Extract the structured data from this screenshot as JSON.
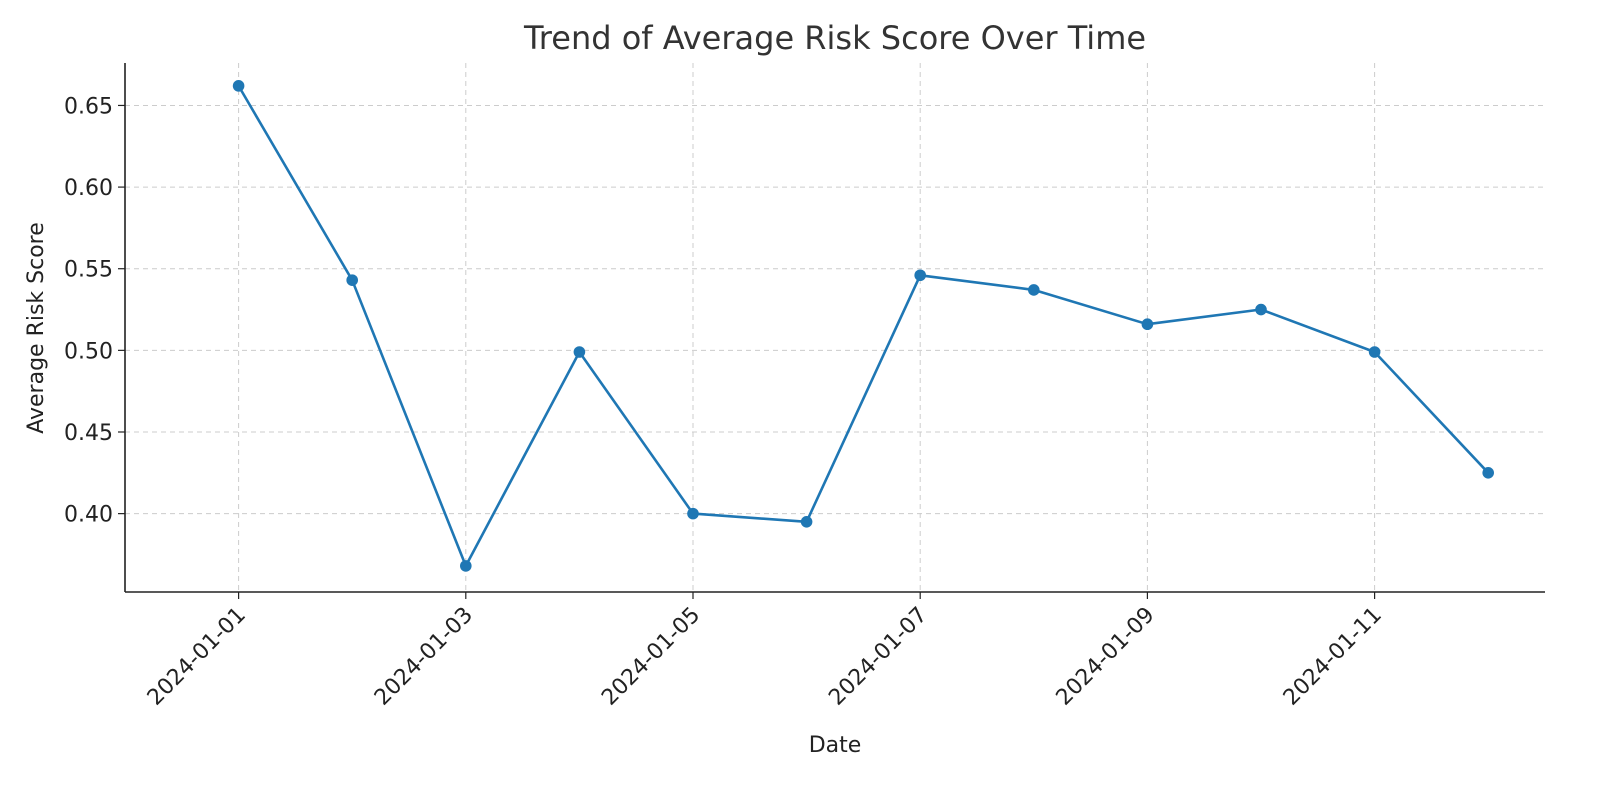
{
  "chart_data": {
    "type": "line",
    "title": "Trend of Average Risk Score Over Time",
    "xlabel": "Date",
    "ylabel": "Average Risk Score",
    "x": [
      "2024-01-01",
      "2024-01-02",
      "2024-01-03",
      "2024-01-04",
      "2024-01-05",
      "2024-01-06",
      "2024-01-07",
      "2024-01-08",
      "2024-01-09",
      "2024-01-10",
      "2024-01-11",
      "2024-01-12"
    ],
    "series": [
      {
        "values": [
          0.662,
          0.543,
          0.368,
          0.499,
          0.4,
          0.395,
          0.546,
          0.537,
          0.516,
          0.525,
          0.499,
          0.425
        ]
      }
    ],
    "x_tick_labels": [
      "2024-01-01",
      "2024-01-03",
      "2024-01-05",
      "2024-01-07",
      "2024-01-09",
      "2024-01-11"
    ],
    "y_tick_labels": [
      "0.40",
      "0.45",
      "0.50",
      "0.55",
      "0.60",
      "0.65"
    ],
    "ylim": [
      0.352,
      0.676
    ],
    "xlim": [
      "2023-12-31",
      "2024-01-12"
    ],
    "grid": true,
    "colors": {
      "series": "#1f77b4",
      "grid": "#cccccc",
      "axis": "#222222",
      "text": "#222222"
    }
  }
}
